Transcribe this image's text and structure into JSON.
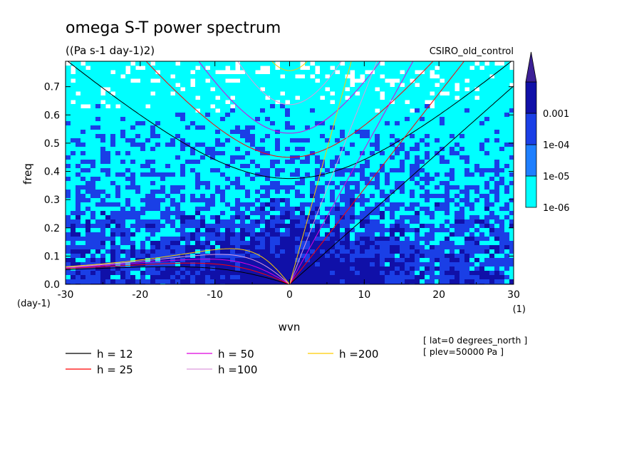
{
  "chart_data": {
    "type": "heatmap",
    "title": "omega S-T power spectrum",
    "subtitle": "((Pa s-1 day-1)2)",
    "dataset_label": "CSIRO_old_control",
    "xlabel": "wvn",
    "ylabel": "freq",
    "x_unit": "(1)",
    "y_unit": "(day-1)",
    "xlim": [
      -30,
      30
    ],
    "ylim": [
      0,
      0.79
    ],
    "x_ticks": [
      -30,
      -20,
      -10,
      0,
      10,
      20,
      30
    ],
    "x_tick_labels": [
      "-30",
      "-20",
      "-10",
      "0",
      "10",
      "20",
      "30"
    ],
    "y_ticks": [
      0,
      0.1,
      0.2,
      0.3,
      0.4,
      0.5,
      0.6,
      0.7
    ],
    "y_tick_labels": [
      "0.0",
      "0.1",
      "0.2",
      "0.3",
      "0.4",
      "0.5",
      "0.6",
      "0.7"
    ],
    "colorbar": {
      "levels": [
        "1e-06",
        "1e-05",
        "1e-04",
        "0.001"
      ],
      "colors": [
        "#00ffff",
        "#1e7fff",
        "#1a3fe6",
        "#1010a8",
        "#3c2096"
      ]
    },
    "overlay_curves": [
      {
        "label": "h = 12",
        "h": 12,
        "color": "#000000"
      },
      {
        "label": "h = 25",
        "h": 25,
        "color": "#ff0000"
      },
      {
        "label": "h = 50",
        "h": 50,
        "color": "#dd00dd"
      },
      {
        "label": "h =100",
        "h": 100,
        "color": "#dd99dd"
      },
      {
        "label": "h =200",
        "h": 200,
        "color": "#ffcc00"
      }
    ],
    "annotations": [
      "[ lat=0 degrees_north ]",
      "[ plev=50000 Pa ]"
    ]
  }
}
